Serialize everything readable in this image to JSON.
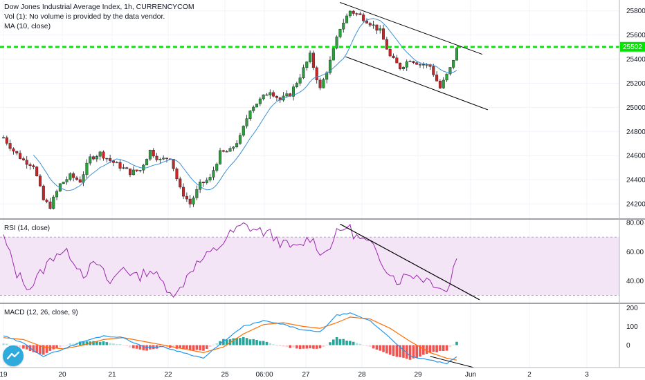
{
  "legend": {
    "title": "Dow Jones Industrial Average Index, 1h, CURRENCYCOM",
    "volume": "Vol (1): No volume is provided by the data vendor.",
    "ma": "MA (10, close)"
  },
  "rsi_label": "RSI (14, close)",
  "macd_label": "MACD (12, 26, close, 9)",
  "colors": {
    "up": "#26a69a",
    "down": "#ef5350",
    "up_body": "#2e9e3a",
    "down_body": "#c62828",
    "ma": "#3b8fd6",
    "rsi": "#9c27b0",
    "rsi_band": "#f3e5f5",
    "macd": "#2196f3",
    "signal": "#ff6d00",
    "resistance": "#00e600",
    "trendline": "#000000"
  },
  "x_axis": {
    "labels": [
      "19",
      "20",
      "21",
      "22",
      "25",
      "06:00",
      "27",
      "28",
      "29",
      "Jun",
      "2",
      "3"
    ]
  },
  "chart_data": [
    {
      "type": "candlestick",
      "pane": "price",
      "y_ticks": [
        "25800",
        "25600",
        "25400",
        "25200",
        "25000",
        "24800",
        "24600",
        "24400",
        "24200"
      ],
      "ylim": [
        24080,
        25890
      ],
      "last_price": "25502",
      "resistance_level": 25502,
      "close_path": [
        [
          0,
          24750
        ],
        [
          3,
          24640
        ],
        [
          6,
          24560
        ],
        [
          9,
          24520
        ],
        [
          12,
          24230
        ],
        [
          14,
          24180
        ],
        [
          17,
          24360
        ],
        [
          20,
          24430
        ],
        [
          23,
          24390
        ],
        [
          26,
          24580
        ],
        [
          29,
          24620
        ],
        [
          32,
          24560
        ],
        [
          35,
          24510
        ],
        [
          38,
          24460
        ],
        [
          41,
          24480
        ],
        [
          44,
          24640
        ],
        [
          47,
          24560
        ],
        [
          50,
          24590
        ],
        [
          53,
          24320
        ],
        [
          56,
          24200
        ],
        [
          59,
          24360
        ],
        [
          62,
          24410
        ],
        [
          65,
          24620
        ],
        [
          68,
          24640
        ],
        [
          71,
          24750
        ],
        [
          74,
          24990
        ],
        [
          77,
          25060
        ],
        [
          80,
          25140
        ],
        [
          83,
          25060
        ],
        [
          86,
          25110
        ],
        [
          89,
          25260
        ],
        [
          92,
          25430
        ],
        [
          95,
          25150
        ],
        [
          98,
          25380
        ],
        [
          101,
          25660
        ],
        [
          104,
          25800
        ],
        [
          107,
          25760
        ],
        [
          110,
          25700
        ],
        [
          113,
          25630
        ],
        [
          116,
          25420
        ],
        [
          119,
          25330
        ],
        [
          122,
          25400
        ],
        [
          125,
          25360
        ],
        [
          128,
          25340
        ],
        [
          131,
          25160
        ],
        [
          134,
          25320
        ],
        [
          136,
          25480
        ]
      ],
      "candle_count": 137
    },
    {
      "type": "line",
      "pane": "rsi",
      "y_ticks": [
        "80.00",
        "60.00",
        "40.00"
      ],
      "ylim": [
        25,
        82
      ],
      "band": [
        30,
        70
      ],
      "values_path": [
        [
          0,
          70
        ],
        [
          4,
          45
        ],
        [
          8,
          35
        ],
        [
          12,
          48
        ],
        [
          16,
          60
        ],
        [
          20,
          58
        ],
        [
          24,
          45
        ],
        [
          28,
          52
        ],
        [
          32,
          38
        ],
        [
          36,
          50
        ],
        [
          40,
          42
        ],
        [
          44,
          48
        ],
        [
          48,
          38
        ],
        [
          52,
          30
        ],
        [
          56,
          48
        ],
        [
          60,
          55
        ],
        [
          64,
          62
        ],
        [
          68,
          72
        ],
        [
          72,
          78
        ],
        [
          76,
          75
        ],
        [
          80,
          72
        ],
        [
          84,
          65
        ],
        [
          88,
          62
        ],
        [
          92,
          70
        ],
        [
          96,
          58
        ],
        [
          100,
          72
        ],
        [
          103,
          78
        ],
        [
          106,
          70
        ],
        [
          110,
          65
        ],
        [
          114,
          52
        ],
        [
          118,
          40
        ],
        [
          122,
          45
        ],
        [
          126,
          42
        ],
        [
          130,
          38
        ],
        [
          133,
          32
        ],
        [
          136,
          57
        ]
      ]
    },
    {
      "type": "macd",
      "pane": "macd",
      "y_ticks": [
        "200",
        "100",
        "0"
      ],
      "ylim": [
        -120,
        220
      ],
      "macd_path": [
        [
          0,
          50
        ],
        [
          6,
          10
        ],
        [
          12,
          -60
        ],
        [
          18,
          -20
        ],
        [
          24,
          20
        ],
        [
          30,
          50
        ],
        [
          36,
          40
        ],
        [
          42,
          -10
        ],
        [
          48,
          -10
        ],
        [
          54,
          -40
        ],
        [
          60,
          -70
        ],
        [
          66,
          20
        ],
        [
          72,
          100
        ],
        [
          78,
          130
        ],
        [
          84,
          110
        ],
        [
          90,
          80
        ],
        [
          95,
          70
        ],
        [
          100,
          160
        ],
        [
          104,
          170
        ],
        [
          110,
          130
        ],
        [
          116,
          40
        ],
        [
          122,
          -60
        ],
        [
          128,
          -80
        ],
        [
          133,
          -100
        ],
        [
          136,
          -60
        ]
      ],
      "signal_path": [
        [
          0,
          40
        ],
        [
          6,
          30
        ],
        [
          12,
          -10
        ],
        [
          18,
          -20
        ],
        [
          24,
          0
        ],
        [
          30,
          30
        ],
        [
          36,
          40
        ],
        [
          42,
          20
        ],
        [
          48,
          0
        ],
        [
          54,
          -20
        ],
        [
          60,
          -40
        ],
        [
          66,
          -10
        ],
        [
          72,
          60
        ],
        [
          78,
          110
        ],
        [
          84,
          120
        ],
        [
          90,
          100
        ],
        [
          95,
          90
        ],
        [
          100,
          120
        ],
        [
          104,
          150
        ],
        [
          110,
          140
        ],
        [
          116,
          90
        ],
        [
          122,
          20
        ],
        [
          128,
          -40
        ],
        [
          133,
          -70
        ],
        [
          136,
          -80
        ]
      ]
    }
  ]
}
